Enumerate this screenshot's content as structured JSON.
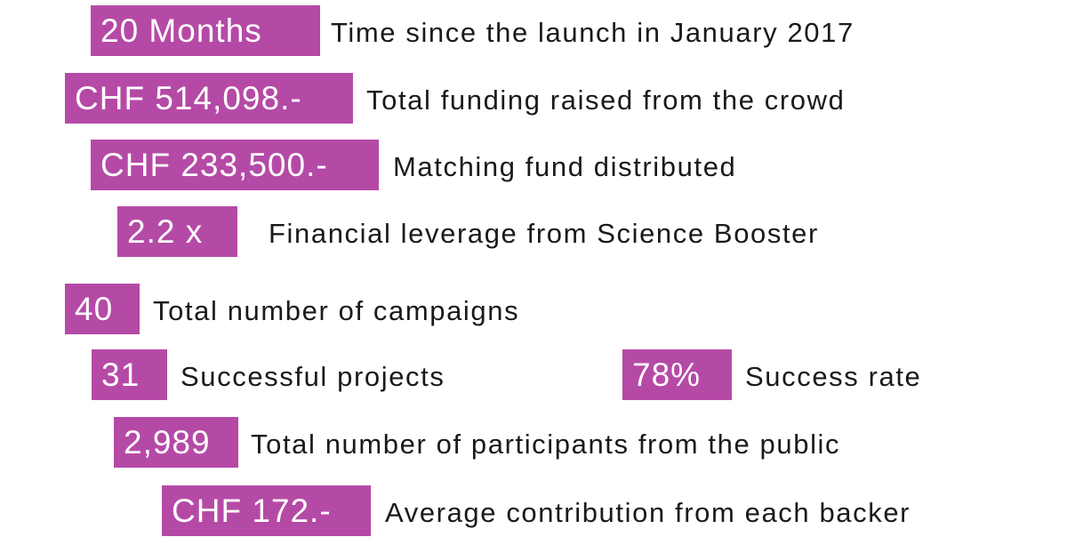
{
  "stats": [
    {
      "figure": "20 Months",
      "label": "Time since the launch in January 2017"
    },
    {
      "figure": "CHF 514,098.-",
      "label": "Total funding raised from the crowd"
    },
    {
      "figure": "CHF 233,500.-",
      "label": "Matching fund distributed"
    },
    {
      "figure": "2.2 x",
      "label": "Financial leverage from Science Booster"
    },
    {
      "figure": "40",
      "label": "Total number of campaigns"
    },
    {
      "figure": "31",
      "label": "Successful projects"
    },
    {
      "figure": "78%",
      "label": "Success rate"
    },
    {
      "figure": "2,989",
      "label": "Total number of participants from the public"
    },
    {
      "figure": "CHF 172.-",
      "label": "Average contribution from each backer"
    }
  ]
}
